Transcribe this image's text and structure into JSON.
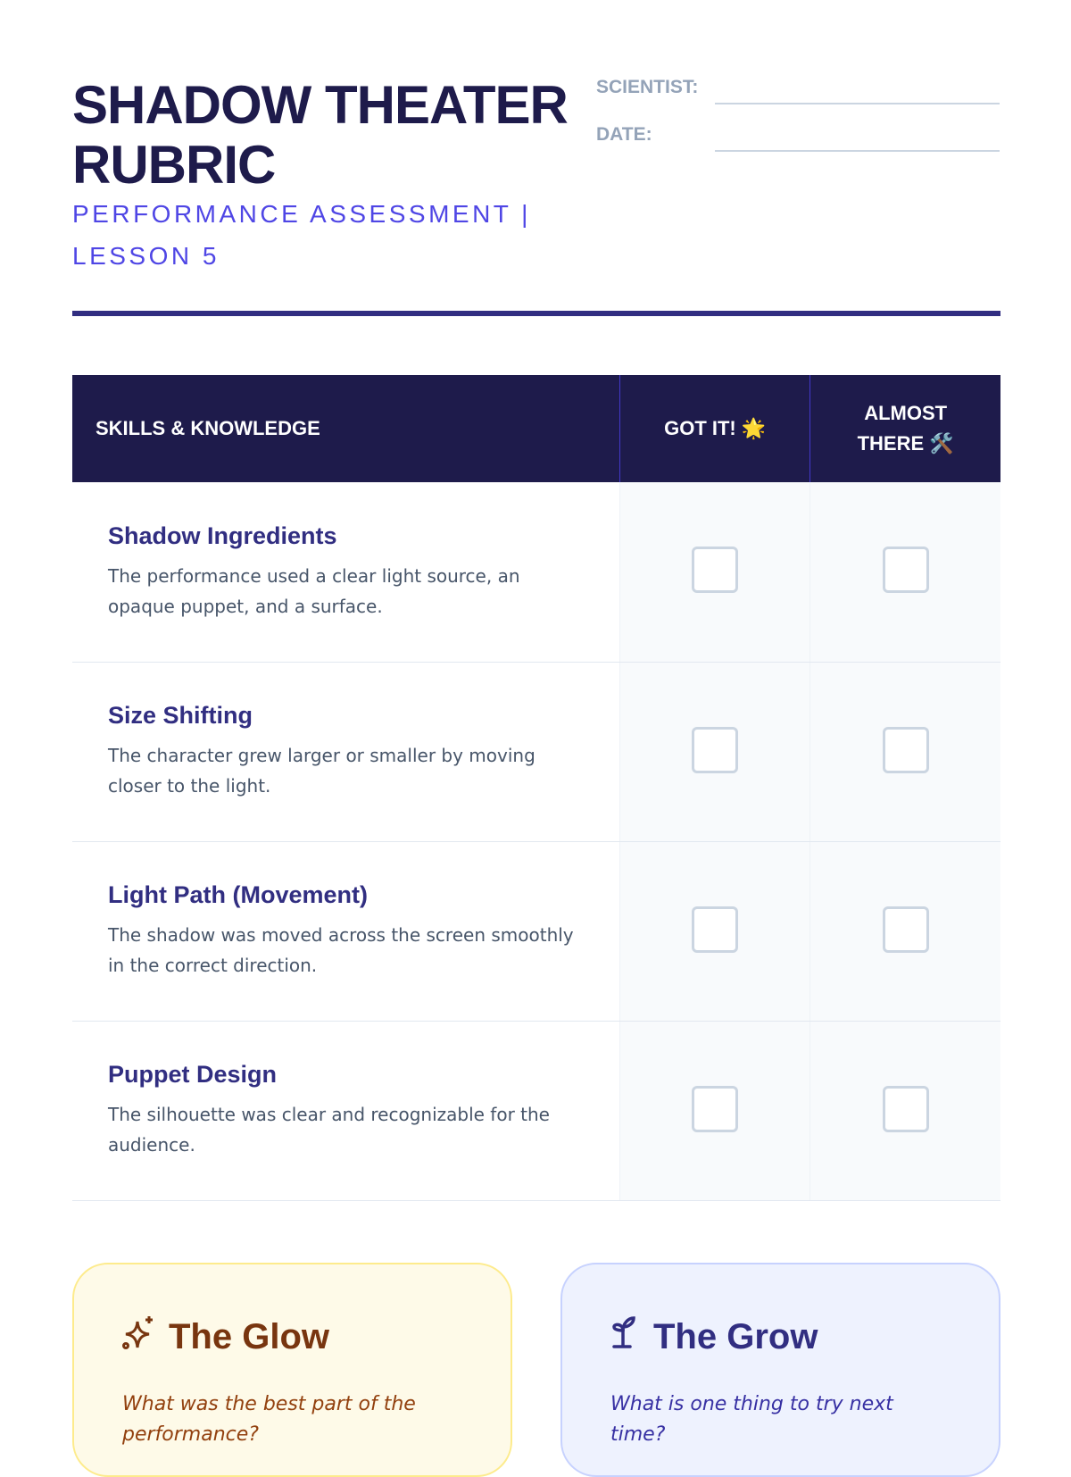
{
  "header": {
    "title": "Shadow Theater Rubric",
    "subtitle": "PERFORMANCE ASSESSMENT | LESSON 5",
    "fields": [
      {
        "label": "SCIENTIST:",
        "value": ""
      },
      {
        "label": "DATE:",
        "value": ""
      }
    ]
  },
  "table": {
    "headers": [
      "SKILLS & KNOWLEDGE",
      "GOT IT! 🌟",
      "ALMOST THERE 🛠️"
    ],
    "rows": [
      {
        "name": "Shadow Ingredients",
        "description": "The performance used a clear light source, an opaque puppet, and a surface.",
        "got_it": false,
        "almost_there": false
      },
      {
        "name": "Size Shifting",
        "description": "The character grew larger or smaller by moving closer to the light.",
        "got_it": false,
        "almost_there": false
      },
      {
        "name": "Light Path (Movement)",
        "description": "The shadow was moved across the screen smoothly in the correct direction.",
        "got_it": false,
        "almost_there": false
      },
      {
        "name": "Puppet Design",
        "description": "The silhouette was clear and recognizable for the audience.",
        "got_it": false,
        "almost_there": false
      }
    ]
  },
  "cards": [
    {
      "icon": "sparkles-icon",
      "title": "The Glow",
      "prompt": "What was the best part of the performance?"
    },
    {
      "icon": "sprout-icon",
      "title": "The Grow",
      "prompt": "What is one thing to try next time?"
    }
  ],
  "colors": {
    "navy": "#1e1b4b",
    "accent": "#4f46e5",
    "glow_bg": "#fefae8",
    "grow_bg": "#eef2fe"
  }
}
